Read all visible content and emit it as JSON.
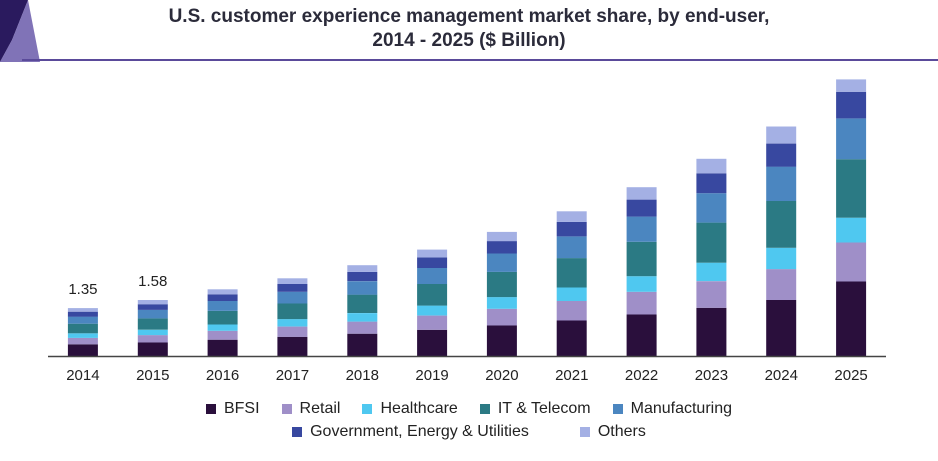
{
  "chart_data": {
    "type": "bar",
    "stacked": true,
    "title": "U.S. customer experience management market share, by end-user,",
    "subtitle": "2014 - 2025 ($ Billion)",
    "xlabel": "",
    "ylabel": "",
    "categories": [
      "2014",
      "2015",
      "2016",
      "2017",
      "2018",
      "2019",
      "2020",
      "2021",
      "2022",
      "2023",
      "2024",
      "2025"
    ],
    "ylim": [
      0,
      7.5
    ],
    "grid": false,
    "legend_position": "bottom",
    "series": [
      {
        "name": "BFSI",
        "color": "#2a0f3c",
        "values": [
          0.33,
          0.38,
          0.46,
          0.54,
          0.63,
          0.74,
          0.86,
          1.0,
          1.17,
          1.36,
          1.58,
          2.1
        ]
      },
      {
        "name": "Retail",
        "color": "#9f8fc8",
        "values": [
          0.18,
          0.21,
          0.25,
          0.29,
          0.34,
          0.4,
          0.47,
          0.55,
          0.64,
          0.75,
          0.87,
          1.1
        ]
      },
      {
        "name": "Healthcare",
        "color": "#4fc8f0",
        "values": [
          0.13,
          0.15,
          0.18,
          0.21,
          0.24,
          0.28,
          0.33,
          0.38,
          0.44,
          0.52,
          0.6,
          0.7
        ]
      },
      {
        "name": "IT & Telecom",
        "color": "#2b7a84",
        "values": [
          0.27,
          0.32,
          0.38,
          0.44,
          0.52,
          0.61,
          0.71,
          0.83,
          0.97,
          1.13,
          1.32,
          1.65
        ]
      },
      {
        "name": "Manufacturing",
        "color": "#4b86c0",
        "values": [
          0.2,
          0.24,
          0.28,
          0.33,
          0.38,
          0.45,
          0.52,
          0.61,
          0.71,
          0.83,
          0.97,
          1.15
        ]
      },
      {
        "name": "Government, Energy & Utilities",
        "color": "#3848a0",
        "values": [
          0.14,
          0.16,
          0.19,
          0.22,
          0.26,
          0.3,
          0.35,
          0.41,
          0.48,
          0.56,
          0.65,
          0.75
        ]
      },
      {
        "name": "Others",
        "color": "#a4b0e4",
        "values": [
          0.1,
          0.12,
          0.14,
          0.16,
          0.19,
          0.22,
          0.26,
          0.3,
          0.35,
          0.41,
          0.48,
          0.35
        ]
      }
    ],
    "data_labels": [
      {
        "category": "2014",
        "text": "1.35"
      },
      {
        "category": "2015",
        "text": "1.58"
      }
    ],
    "axis_color": "#444444",
    "corner_colors": [
      "#2a1a5e",
      "#6a5aaa"
    ]
  }
}
